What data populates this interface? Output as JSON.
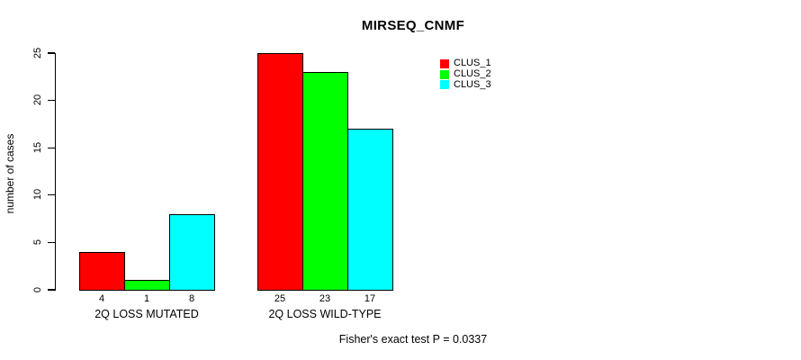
{
  "chart_data": {
    "type": "bar",
    "title": "MIRSEQ_CNMF",
    "ylabel": "number of cases",
    "xlabel": "",
    "categories": [
      "2Q LOSS MUTATED",
      "2Q LOSS WILD-TYPE"
    ],
    "series": [
      {
        "name": "CLUS_1",
        "color": "#ff0000",
        "values": [
          4,
          25
        ]
      },
      {
        "name": "CLUS_2",
        "color": "#00ff00",
        "values": [
          1,
          23
        ]
      },
      {
        "name": "CLUS_3",
        "color": "#00ffff",
        "values": [
          8,
          17
        ]
      }
    ],
    "yticks": [
      0,
      5,
      10,
      15,
      20,
      25
    ],
    "ylim": [
      0,
      25
    ],
    "grid": false,
    "show_bar_values": true,
    "legend_position": "top-right",
    "annotation": "Fisher's exact test P = 0.0337"
  }
}
